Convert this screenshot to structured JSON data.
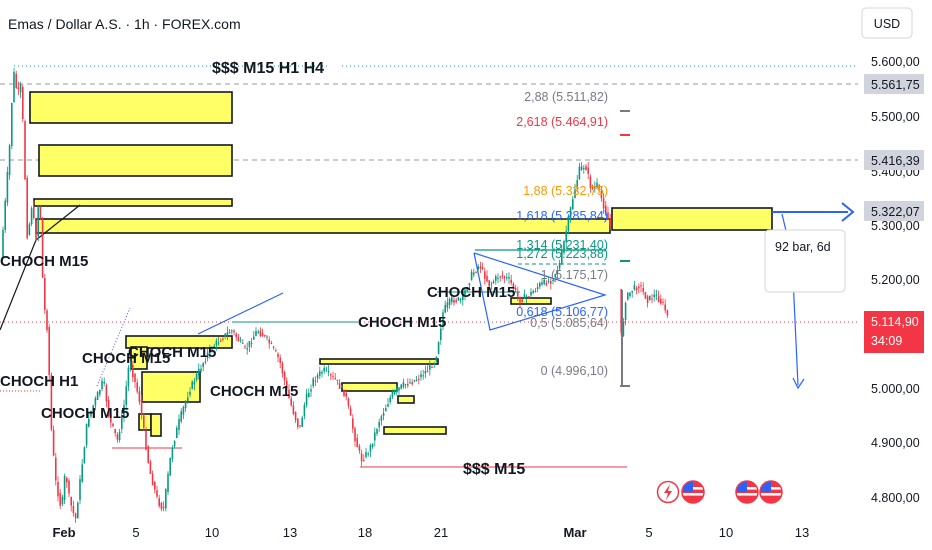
{
  "title": "Emas / Dollar A.S. · 1h · FOREX.com",
  "currency_button": "USD",
  "chart_data": {
    "type": "candlestick",
    "symbol": "Emas / Dollar A.S.",
    "interval": "1h",
    "source": "FOREX.com",
    "y_axis": {
      "ticks": [
        "5.600,00",
        "5.500,00",
        "5.400,00",
        "5.300,00",
        "5.200,00",
        "5.000,00",
        "4.900,00",
        "4.800,00"
      ],
      "range": [
        4760,
        5650
      ]
    },
    "x_axis": {
      "ticks": [
        "Feb",
        "5",
        "10",
        "13",
        "18",
        "21",
        "Mar",
        "5",
        "10",
        "13"
      ]
    },
    "price_labels": [
      {
        "text": "5.561,75",
        "value": 5561.75,
        "style": "gray"
      },
      {
        "text": "5.416,39",
        "value": 5416.39,
        "style": "gray"
      },
      {
        "text": "5.322,07",
        "value": 5322.07,
        "style": "gray"
      },
      {
        "text": "5.114,90",
        "value": 5114.9,
        "style": "current"
      },
      {
        "text": "34:09",
        "style": "countdown"
      }
    ],
    "fib_levels": [
      {
        "text": "2,88 (5.511,82)",
        "value": 5511.82,
        "color": "#787b86"
      },
      {
        "text": "2,618 (5.464,91)",
        "value": 5464.91,
        "color": "#f23645"
      },
      {
        "text": "1,88 (5.332,75)",
        "value": 5332.75,
        "color": "#ff9800"
      },
      {
        "text": "1,618 (5.285,84)",
        "value": 5285.84,
        "color": "#2962ff"
      },
      {
        "text": "1,314 (5.231,40)",
        "value": 5231.4,
        "color": "#089981"
      },
      {
        "text": "1,272 (5.223,88)",
        "value": 5223.88,
        "color": "#089981"
      },
      {
        "text": "1 (5.175,17)",
        "value": 5175.17,
        "color": "#787b86"
      },
      {
        "text": "0,618 (5.106,77)",
        "value": 5106.77,
        "color": "#2962ff"
      },
      {
        "text": "0,5 (5.085,64)",
        "value": 5085.64,
        "color": "#787b86"
      },
      {
        "text": "0 (4.996,10)",
        "value": 4996.1,
        "color": "#787b86"
      }
    ],
    "annotations": [
      "$$$ M15 H1 H4",
      "CHOCH M15",
      "CHOCH M15",
      "CHOCH M15",
      "CHOCH M15",
      "CHOCH M15",
      "CHOCH M15",
      "CHOCH H1",
      "CHOCH M15",
      "$$$ M15"
    ],
    "measure_callout": "92 bar, 6d",
    "current_price": 5114.9,
    "colors": {
      "up": "#089981",
      "down": "#f23645",
      "zone": "#ffff66",
      "accent": "#2962ff"
    }
  }
}
